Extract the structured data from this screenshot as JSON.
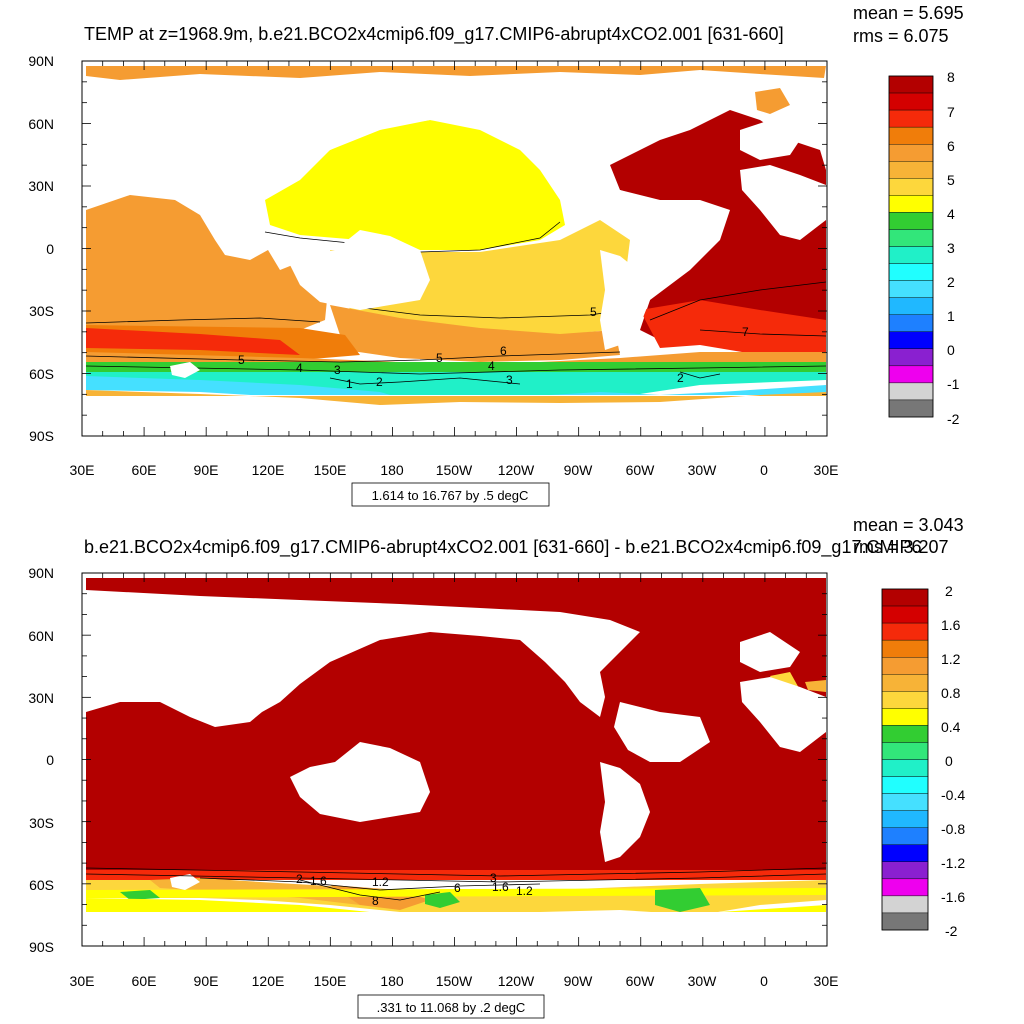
{
  "panels": [
    {
      "title": "TEMP at z=1968.9m, b.e21.BCO2x4cmip6.f09_g17.CMIP6-abrupt4xCO2.001 [631-660]",
      "stats": {
        "mean": "mean = 5.695",
        "rms": "rms = 6.075"
      },
      "caption": "1.614 to 16.767 by .5 degC",
      "lat_labels": [
        "90N",
        "60N",
        "30N",
        "0",
        "30S",
        "60S",
        "90S"
      ],
      "lon_labels": [
        "30E",
        "60E",
        "90E",
        "120E",
        "150E",
        "180",
        "150W",
        "120W",
        "90W",
        "60W",
        "30W",
        "0",
        "30E"
      ],
      "colorbar": {
        "labels": [
          "8",
          "7",
          "6",
          "5",
          "4",
          "3",
          "2",
          "1",
          "0",
          "-1",
          "-2"
        ],
        "colors": [
          "#b30000",
          "#d40000",
          "#f52a0a",
          "#f07d0a",
          "#f59c32",
          "#f7b337",
          "#fdd73c",
          "#ffff00",
          "#32cd32",
          "#32e67a",
          "#20f0c8",
          "#20ffff",
          "#45e0ff",
          "#20b8ff",
          "#1e80ff",
          "#0000ff",
          "#8a20d0",
          "#ee00ee",
          "#d3d3d3",
          "#777777"
        ]
      },
      "contour_labels": [
        "5",
        "4",
        "3",
        "2",
        "1",
        "5",
        "6",
        "4",
        "3",
        "5",
        "7",
        "2"
      ]
    },
    {
      "title": "b.e21.BCO2x4cmip6.f09_g17.CMIP6-abrupt4xCO2.001 [631-660] - b.e21.BCO2x4cmip6.f09_g17.CMIP6",
      "stats": {
        "mean": "mean = 3.043",
        "rms": "rms = 3.207"
      },
      "caption": ".331 to 11.068 by .2 degC",
      "lat_labels": [
        "90N",
        "60N",
        "30N",
        "0",
        "30S",
        "60S",
        "90S"
      ],
      "lon_labels": [
        "30E",
        "60E",
        "90E",
        "120E",
        "150E",
        "180",
        "150W",
        "120W",
        "90W",
        "60W",
        "30W",
        "0",
        "30E"
      ],
      "colorbar": {
        "labels": [
          "2",
          "1.6",
          "1.2",
          "0.8",
          "0.4",
          "0",
          "-0.4",
          "-0.8",
          "-1.2",
          "-1.6",
          "-2"
        ],
        "colors": [
          "#b30000",
          "#d40000",
          "#f52a0a",
          "#f07d0a",
          "#f59c32",
          "#f7b337",
          "#fdd73c",
          "#ffff00",
          "#32cd32",
          "#32e67a",
          "#20f0c8",
          "#20ffff",
          "#45e0ff",
          "#20b8ff",
          "#1e80ff",
          "#0000ff",
          "#8a20d0",
          "#ee00ee",
          "#d3d3d3",
          "#777777"
        ]
      },
      "contour_labels": [
        "2",
        "1.6",
        "1.2",
        "8",
        "6",
        "1.6",
        "1.2",
        "3"
      ]
    }
  ]
}
